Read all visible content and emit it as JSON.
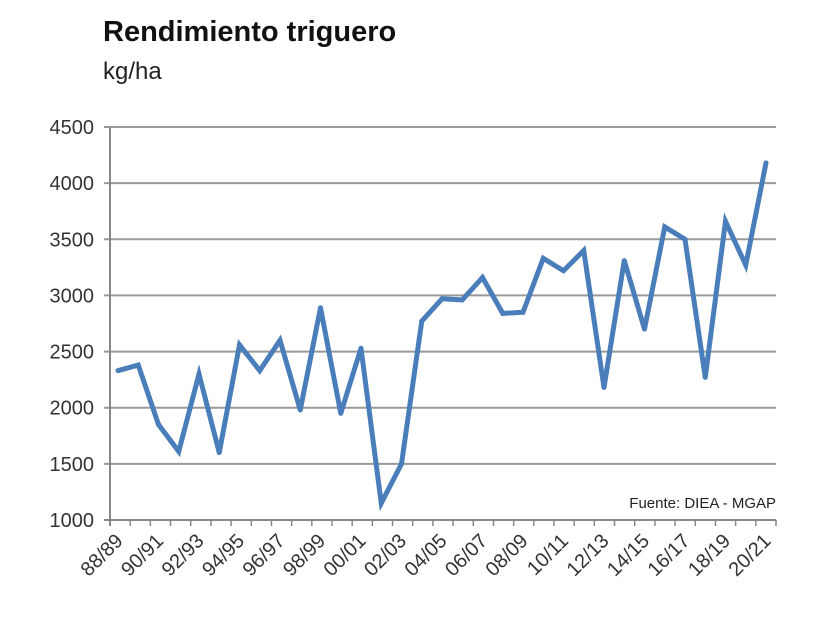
{
  "chart_data": {
    "type": "line",
    "title": "Rendimiento triguero",
    "ylabel": "kg/ha",
    "source": "Fuente: DIEA - MGAP",
    "ylim": [
      1000,
      4500
    ],
    "yticks": [
      1000,
      1500,
      2000,
      2500,
      3000,
      3500,
      4000,
      4500
    ],
    "grid": true,
    "color": "#4a7ebb",
    "categories": [
      "88/89",
      "89/90",
      "90/91",
      "91/92",
      "92/93",
      "93/94",
      "94/95",
      "95/96",
      "96/97",
      "97/98",
      "98/99",
      "99/00",
      "00/01",
      "01/02",
      "02/03",
      "03/04",
      "04/05",
      "05/06",
      "06/07",
      "07/08",
      "08/09",
      "09/10",
      "10/11",
      "11/12",
      "12/13",
      "13/14",
      "14/15",
      "15/16",
      "16/17",
      "17/18",
      "18/19",
      "19/20",
      "20/21"
    ],
    "xtick_labels": [
      "88/89",
      "90/91",
      "92/93",
      "94/95",
      "96/97",
      "98/99",
      "00/01",
      "02/03",
      "04/05",
      "06/07",
      "08/09",
      "10/11",
      "12/13",
      "14/15",
      "16/17",
      "18/19",
      "20/21"
    ],
    "values": [
      2330,
      2380,
      1850,
      1610,
      2300,
      1600,
      2560,
      2330,
      2600,
      1980,
      2890,
      1950,
      2530,
      1150,
      1500,
      2770,
      2970,
      2960,
      3160,
      2840,
      2850,
      3330,
      3220,
      3400,
      2180,
      3310,
      2700,
      3610,
      3500,
      2270,
      3660,
      3270,
      4180
    ]
  }
}
